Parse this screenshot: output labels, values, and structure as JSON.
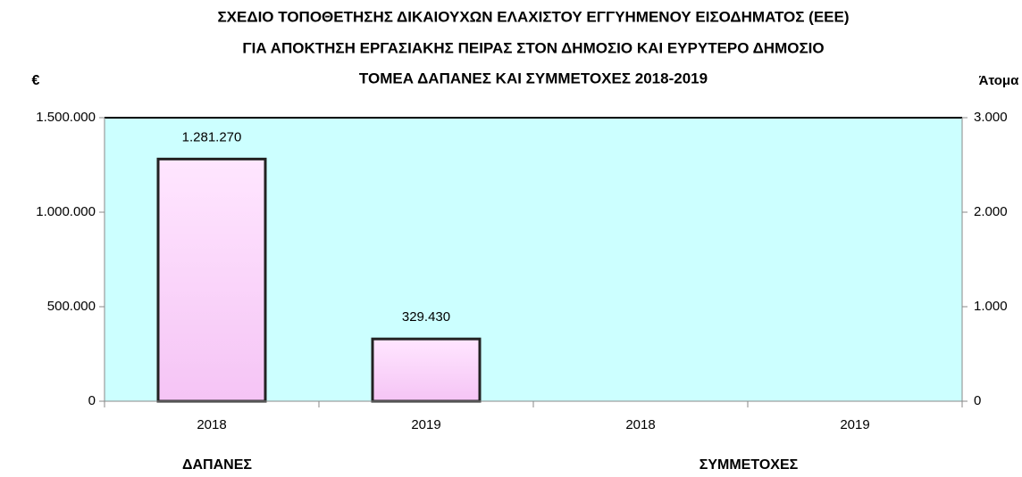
{
  "chart_data": {
    "type": "bar",
    "title": [
      "ΣΧΕΔΙΟ ΤΟΠΟΘΕΤΗΣΗΣ ΔΙΚΑΙΟΥΧΩΝ ΕΛΑΧΙΣΤΟΥ ΕΓΓΥΗΜΕΝΟΥ ΕΙΣΟΔΗΜΑΤΟΣ (ΕΕΕ)",
      "ΓΙΑ ΑΠΟΚΤΗΣΗ ΕΡΓΑΣΙΑΚΗΣ ΠΕΙΡΑΣ ΣΤΟΝ ΔΗΜΟΣΙΟ ΚΑΙ ΕΥΡΥΤΕΡΟ ΔΗΜΟΣΙΟ",
      "ΤΟΜΕΑ ΔΑΠΑΝΕΣ ΚΑΙ ΣΥΜΜΕΤΟΧΕΣ 2018-2019"
    ],
    "ylabel": "€",
    "y2label": "Άτομα",
    "categories": [
      "2018",
      "2019",
      "2018",
      "2019"
    ],
    "group_labels": [
      "ΔΑΠΑΝΕΣ",
      "ΣΥΜΜΕΤΟΧΕΣ"
    ],
    "series": [
      {
        "color": "#ffccff",
        "values": [
          1281270,
          329430,
          null,
          null
        ],
        "value_labels": [
          "1.281.270",
          "329.430",
          null,
          null
        ]
      }
    ],
    "ylim": [
      0,
      1500000
    ],
    "yticks": [
      0,
      {
        "value": 500000,
        "label": "500.000"
      },
      {
        "value": 1000000,
        "label": "1.000.000"
      },
      {
        "value": 1500000,
        "label": "1.500.000"
      }
    ],
    "y2lim": [
      0,
      3000
    ],
    "y2ticks": [
      0,
      {
        "value": 1000,
        "label": "1.000"
      },
      {
        "value": 2000,
        "label": "2.000"
      },
      {
        "value": 3000,
        "label": "3.000"
      }
    ],
    "background": "#ccffff"
  }
}
